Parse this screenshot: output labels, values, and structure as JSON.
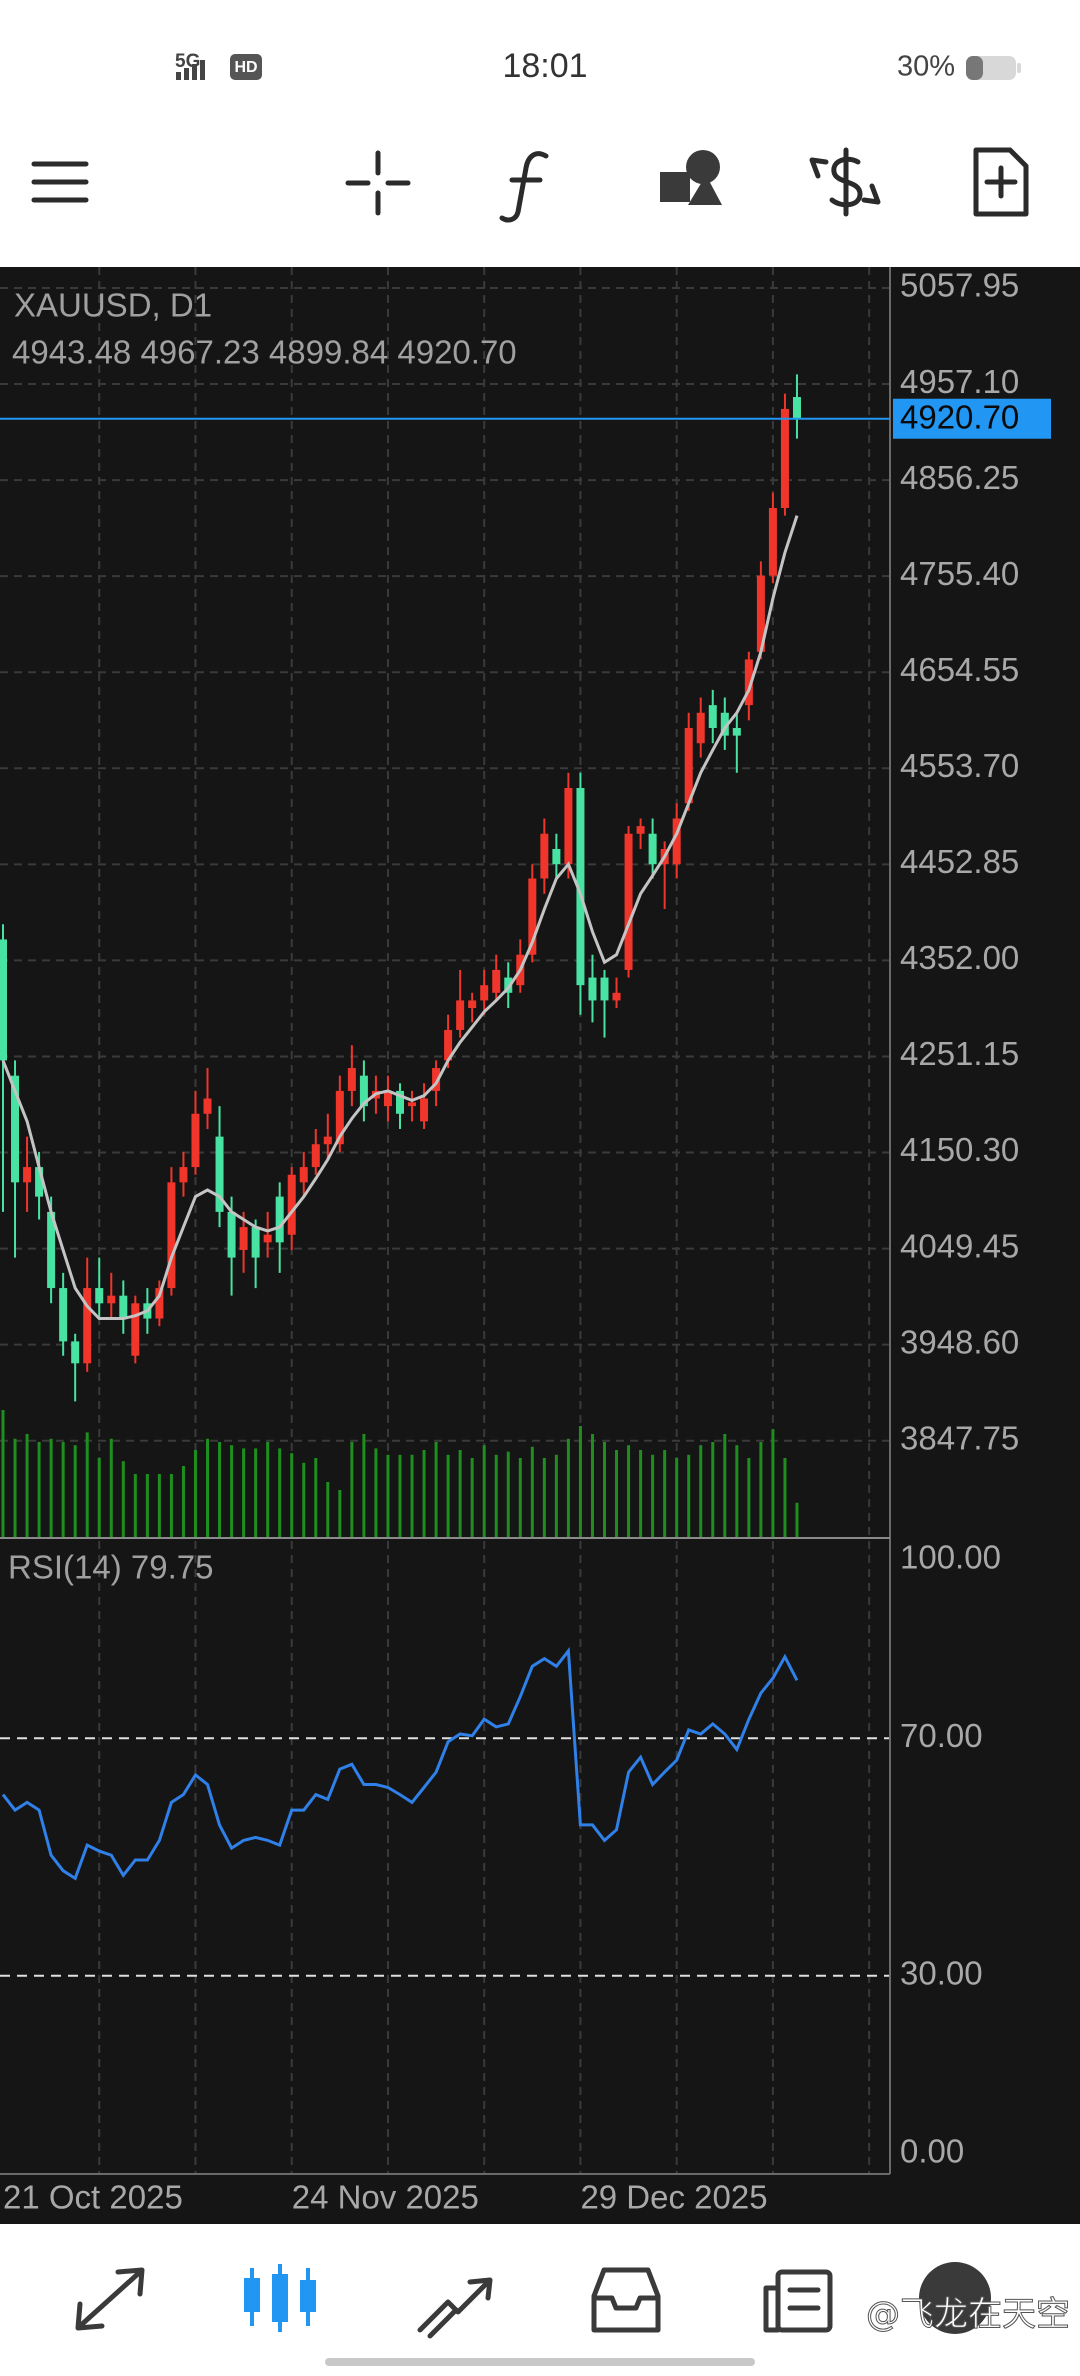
{
  "status_bar": {
    "time": "18:01",
    "network": "5G",
    "hd": "HD",
    "battery": "30%"
  },
  "watermark": "@飞龙在天空",
  "chart_data": {
    "type": "candlestick",
    "title": "XAUUSD, D1",
    "ohlc_text": "4943.48 4967.23 4899.84 4920.70",
    "categories": [
      "21 Oct 2025",
      null,
      null,
      null,
      null,
      null,
      null,
      null,
      null,
      null,
      null,
      null,
      null,
      null,
      null,
      null,
      null,
      null,
      null,
      null,
      null,
      null,
      null,
      null,
      "24 Nov 2025",
      null,
      null,
      null,
      null,
      null,
      null,
      null,
      null,
      null,
      null,
      null,
      null,
      null,
      null,
      null,
      null,
      null,
      null,
      null,
      null,
      null,
      null,
      null,
      "29 Dec 2025",
      null,
      null,
      null,
      null,
      null,
      null,
      null,
      null,
      null,
      null,
      null,
      null,
      null,
      null,
      null,
      null,
      null,
      null
    ],
    "open": [
      4374,
      4231,
      4119,
      4135,
      4088,
      4008,
      3952,
      3929,
      4008,
      3992,
      4000,
      3937,
      3992,
      3976,
      4008,
      4119,
      4135,
      4191,
      4167,
      4088,
      4048,
      4072,
      4056,
      4104,
      4064,
      4119,
      4135,
      4159,
      4159,
      4215,
      4231,
      4207,
      4199,
      4215,
      4199,
      4183,
      4215,
      4247,
      4279,
      4302,
      4310,
      4318,
      4334,
      4326,
      4358,
      4438,
      4469,
      4453,
      4533,
      4334,
      4334,
      4310,
      4342,
      4485,
      4485,
      4453,
      4453,
      4517,
      4580,
      4620,
      4612,
      4596,
      4620,
      4676,
      4756,
      4827,
      4943.48
    ],
    "high": [
      4390,
      4247,
      4167,
      4151,
      4104,
      4024,
      3960,
      4040,
      4040,
      4024,
      4016,
      4000,
      4008,
      4016,
      4135,
      4151,
      4215,
      4239,
      4199,
      4104,
      4088,
      4080,
      4088,
      4119,
      4135,
      4151,
      4175,
      4191,
      4231,
      4263,
      4247,
      4231,
      4231,
      4223,
      4215,
      4223,
      4247,
      4295,
      4342,
      4318,
      4342,
      4358,
      4350,
      4374,
      4453,
      4501,
      4485,
      4549,
      4549,
      4358,
      4342,
      4334,
      4493,
      4501,
      4501,
      4477,
      4517,
      4612,
      4628,
      4636,
      4628,
      4612,
      4676,
      4771,
      4843,
      4947,
      4967.23
    ],
    "low": [
      4088,
      4040,
      4088,
      4080,
      3992,
      3937,
      3889,
      3920,
      3976,
      3976,
      3960,
      3929,
      3960,
      3968,
      4000,
      4104,
      4127,
      4175,
      4072,
      4000,
      4024,
      4008,
      4040,
      4024,
      4048,
      4104,
      4127,
      4143,
      4151,
      4199,
      4183,
      4191,
      4183,
      4175,
      4183,
      4175,
      4199,
      4239,
      4271,
      4287,
      4295,
      4310,
      4302,
      4318,
      4350,
      4422,
      4438,
      4438,
      4295,
      4287,
      4271,
      4302,
      4334,
      4469,
      4438,
      4406,
      4438,
      4509,
      4565,
      4580,
      4573,
      4549,
      4604,
      4668,
      4748,
      4819,
      4899.84
    ],
    "close": [
      4247,
      4119,
      4135,
      4104,
      4008,
      3952,
      3929,
      4008,
      3992,
      4000,
      3976,
      3992,
      3976,
      4008,
      4119,
      4135,
      4191,
      4207,
      4088,
      4040,
      4072,
      4040,
      4064,
      4056,
      4127,
      4135,
      4159,
      4167,
      4215,
      4239,
      4199,
      4215,
      4215,
      4191,
      4203,
      4207,
      4239,
      4279,
      4310,
      4310,
      4326,
      4342,
      4318,
      4358,
      4438,
      4485,
      4453,
      4533,
      4326,
      4310,
      4310,
      4318,
      4485,
      4493,
      4453,
      4469,
      4501,
      4596,
      4612,
      4596,
      4588,
      4588,
      4668,
      4756,
      4827,
      4931,
      4920.7
    ],
    "colors": {
      "up": "#f0352b",
      "down": "#48e3a2"
    },
    "ma": {
      "color": "#c4c4c4",
      "values": [
        4247,
        4215,
        4183,
        4135,
        4088,
        4048,
        4008,
        3989,
        3976,
        3976,
        3976,
        3979,
        3984,
        4000,
        4040,
        4072,
        4104,
        4111,
        4104,
        4088,
        4080,
        4072,
        4068,
        4072,
        4088,
        4104,
        4123,
        4143,
        4167,
        4186,
        4202,
        4212,
        4215,
        4210,
        4205,
        4210,
        4223,
        4247,
        4266,
        4282,
        4298,
        4310,
        4323,
        4342,
        4371,
        4406,
        4438,
        4453,
        4422,
        4382,
        4350,
        4358,
        4390,
        4422,
        4441,
        4461,
        4485,
        4517,
        4549,
        4573,
        4596,
        4612,
        4636,
        4676,
        4732,
        4780,
        4819
      ]
    },
    "volume": {
      "color": "#1e8f1e",
      "values": [
        80,
        62,
        65,
        60,
        62,
        60,
        58,
        66,
        50,
        62,
        48,
        40,
        40,
        40,
        40,
        45,
        55,
        62,
        60,
        58,
        56,
        56,
        60,
        56,
        53,
        47,
        50,
        35,
        30,
        60,
        65,
        56,
        52,
        52,
        52,
        55,
        60,
        52,
        55,
        50,
        58,
        52,
        54,
        50,
        57,
        50,
        52,
        62,
        70,
        65,
        60,
        55,
        58,
        55,
        52,
        55,
        50,
        52,
        58,
        60,
        65,
        58,
        50,
        60,
        68,
        50,
        22
      ]
    },
    "last_price": {
      "value": 4920.7,
      "label": "4920.70",
      "color": "#2196f3"
    },
    "ylim": [
      3745.6,
      5080
    ],
    "yticks": [
      5057.95,
      {
        "value": 4957.1,
        "label": "4957.10"
      },
      4856.25,
      {
        "value": 4755.4,
        "label": "4755.40"
      },
      4654.55,
      {
        "value": 4553.7,
        "label": "4553.70"
      },
      4452.85,
      {
        "value": 4352,
        "label": "4352.00"
      },
      4251.15,
      {
        "value": 4150.3,
        "label": "4150.30"
      },
      4049.45,
      {
        "value": 3948.6,
        "label": "3948.60"
      },
      3847.75
    ],
    "grid": true,
    "rsi": {
      "label": "RSI(14) 79.75",
      "color": "#2f80e8",
      "values": [
        60.5,
        57.9,
        59.2,
        57.9,
        50.3,
        47.7,
        46.4,
        52,
        51,
        50.3,
        46.9,
        49.5,
        49.5,
        52.8,
        59.2,
        60.5,
        63.8,
        62.2,
        55.4,
        51.5,
        52.8,
        53.3,
        52.8,
        52,
        57.9,
        57.9,
        60.5,
        59.7,
        64.8,
        65.6,
        62.2,
        62.2,
        61.7,
        60.5,
        59.2,
        61.7,
        64.3,
        69.4,
        70.7,
        70.4,
        73.2,
        71.9,
        72.4,
        77,
        82.1,
        83.4,
        82.1,
        84.7,
        55.4,
        55.4,
        52.8,
        54.6,
        64.3,
        66.8,
        62.2,
        64.3,
        66.3,
        71.4,
        70.7,
        72.4,
        70.7,
        68.1,
        73.2,
        77.6,
        80.1,
        83.7,
        79.75
      ],
      "ylim": [
        0,
        100
      ],
      "yticks": [
        {
          "value": 100,
          "label": "100.00"
        },
        {
          "value": 70,
          "label": "70.00"
        },
        {
          "value": 30,
          "label": "30.00"
        },
        {
          "value": 0,
          "label": "0.00"
        }
      ]
    }
  }
}
